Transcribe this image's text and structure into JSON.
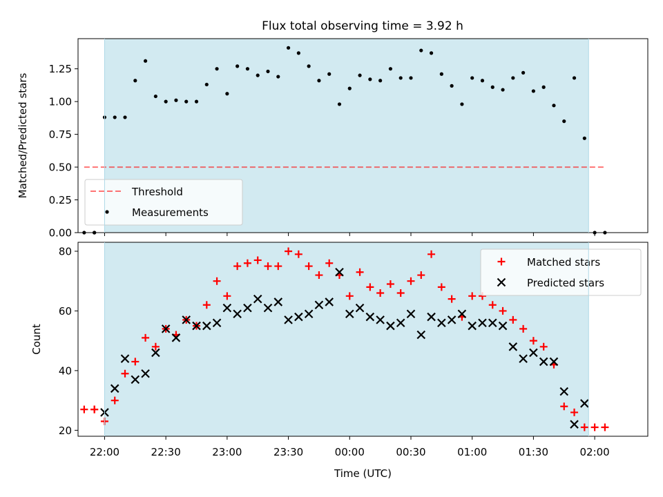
{
  "title": "Flux total observing time = 3.92 h",
  "colors": {
    "shade": "#add8e6",
    "threshold": "#ff0000",
    "matched": "#ff0000",
    "predicted": "#000000",
    "measurements": "#000000"
  },
  "chart_data": [
    {
      "type": "scatter",
      "title": "Flux total observing time = 3.92 h",
      "xlabel": "",
      "ylabel": "Matched/Predicted stars",
      "xlim": [
        "21:47",
        "02:26"
      ],
      "ylim": [
        0,
        1.48
      ],
      "x_ticks": [
        "22:00",
        "22:30",
        "23:00",
        "23:30",
        "00:00",
        "00:30",
        "01:00",
        "01:30",
        "02:00"
      ],
      "y_ticks": [
        "0.00",
        "0.25",
        "0.50",
        "0.75",
        "1.00",
        "1.25"
      ],
      "y_tick_values": [
        0,
        0.25,
        0.5,
        0.75,
        1.0,
        1.25
      ],
      "shaded_interval": [
        "22:00",
        "01:57"
      ],
      "legend": {
        "position": "lower left",
        "entries": [
          "Threshold",
          "Measurements"
        ]
      },
      "threshold": {
        "name": "Threshold",
        "y": 0.5,
        "x_range": [
          "21:50",
          "02:05"
        ]
      },
      "series": [
        {
          "name": "Measurements",
          "x": [
            "21:50",
            "21:55",
            "21:55",
            "22:00",
            "22:05",
            "22:10",
            "22:15",
            "22:20",
            "22:25",
            "22:30",
            "22:35",
            "22:40",
            "22:45",
            "22:50",
            "22:55",
            "23:00",
            "23:05",
            "23:10",
            "23:15",
            "23:20",
            "23:25",
            "23:30",
            "23:35",
            "23:40",
            "23:45",
            "23:50",
            "23:55",
            "00:00",
            "00:05",
            "00:10",
            "00:15",
            "00:20",
            "00:25",
            "00:30",
            "00:35",
            "00:40",
            "00:45",
            "00:50",
            "00:55",
            "01:00",
            "01:05",
            "01:10",
            "01:15",
            "01:20",
            "01:25",
            "01:30",
            "01:35",
            "01:40",
            "01:45",
            "01:50",
            "01:55",
            "02:00",
            "02:05"
          ],
          "y": [
            0,
            0,
            0,
            0.88,
            0.88,
            0.88,
            1.16,
            1.31,
            1.04,
            1.0,
            1.01,
            1.0,
            1.0,
            1.13,
            1.25,
            1.06,
            1.27,
            1.25,
            1.2,
            1.23,
            1.19,
            1.41,
            1.37,
            1.27,
            1.16,
            1.21,
            0.98,
            1.1,
            1.2,
            1.17,
            1.16,
            1.25,
            1.18,
            1.18,
            1.39,
            1.37,
            1.21,
            1.12,
            0.98,
            1.18,
            1.16,
            1.11,
            1.09,
            1.18,
            1.22,
            1.08,
            1.11,
            0.97,
            0.85,
            1.18,
            0.72,
            0,
            0
          ]
        }
      ]
    },
    {
      "type": "scatter",
      "title": "",
      "xlabel": "Time (UTC)",
      "ylabel": "Count",
      "xlim": [
        "21:47",
        "02:26"
      ],
      "ylim": [
        18,
        83
      ],
      "x_ticks": [
        "22:00",
        "22:30",
        "23:00",
        "23:30",
        "00:00",
        "00:30",
        "01:00",
        "01:30",
        "02:00"
      ],
      "y_ticks": [
        "20",
        "40",
        "60",
        "80"
      ],
      "y_tick_values": [
        20,
        40,
        60,
        80
      ],
      "shaded_interval": [
        "22:00",
        "01:57"
      ],
      "legend": {
        "position": "upper right",
        "entries": [
          "Matched stars",
          "Predicted stars"
        ]
      },
      "series": [
        {
          "name": "Matched stars",
          "x": [
            "21:50",
            "21:55",
            "21:55",
            "22:00",
            "22:05",
            "22:10",
            "22:15",
            "22:20",
            "22:25",
            "22:30",
            "22:35",
            "22:40",
            "22:45",
            "22:50",
            "22:55",
            "23:00",
            "23:05",
            "23:10",
            "23:15",
            "23:20",
            "23:25",
            "23:30",
            "23:35",
            "23:40",
            "23:45",
            "23:50",
            "23:55",
            "00:00",
            "00:05",
            "00:10",
            "00:15",
            "00:20",
            "00:25",
            "00:30",
            "00:35",
            "00:40",
            "00:45",
            "00:50",
            "00:55",
            "01:00",
            "01:05",
            "01:10",
            "01:15",
            "01:20",
            "01:25",
            "01:30",
            "01:35",
            "01:40",
            "01:45",
            "01:50",
            "01:55",
            "02:00",
            "02:05"
          ],
          "y": [
            27,
            27,
            27,
            23,
            30,
            39,
            43,
            51,
            48,
            54,
            52,
            57,
            55,
            62,
            70,
            65,
            75,
            76,
            77,
            75,
            75,
            80,
            79,
            75,
            72,
            76,
            72,
            65,
            73,
            68,
            66,
            69,
            66,
            70,
            72,
            79,
            68,
            64,
            58,
            65,
            65,
            62,
            60,
            57,
            54,
            50,
            48,
            42,
            28,
            26,
            21,
            21,
            21
          ]
        },
        {
          "name": "Predicted stars",
          "x": [
            "22:00",
            "22:05",
            "22:10",
            "22:15",
            "22:20",
            "22:25",
            "22:30",
            "22:35",
            "22:40",
            "22:45",
            "22:50",
            "22:55",
            "23:00",
            "23:05",
            "23:10",
            "23:15",
            "23:20",
            "23:25",
            "23:30",
            "23:35",
            "23:40",
            "23:45",
            "23:50",
            "23:55",
            "00:00",
            "00:05",
            "00:10",
            "00:15",
            "00:20",
            "00:25",
            "00:30",
            "00:35",
            "00:40",
            "00:45",
            "00:50",
            "00:55",
            "01:00",
            "01:05",
            "01:10",
            "01:15",
            "01:20",
            "01:25",
            "01:30",
            "01:35",
            "01:40",
            "01:45",
            "01:50",
            "01:55"
          ],
          "y": [
            26,
            34,
            44,
            37,
            39,
            46,
            54,
            51,
            57,
            55,
            55,
            56,
            61,
            59,
            61,
            64,
            61,
            63,
            57,
            58,
            59,
            62,
            63,
            73,
            59,
            61,
            58,
            57,
            55,
            56,
            59,
            52,
            58,
            56,
            57,
            59,
            55,
            56,
            56,
            55,
            48,
            44,
            46,
            43,
            43,
            33,
            22,
            29
          ]
        }
      ]
    }
  ]
}
